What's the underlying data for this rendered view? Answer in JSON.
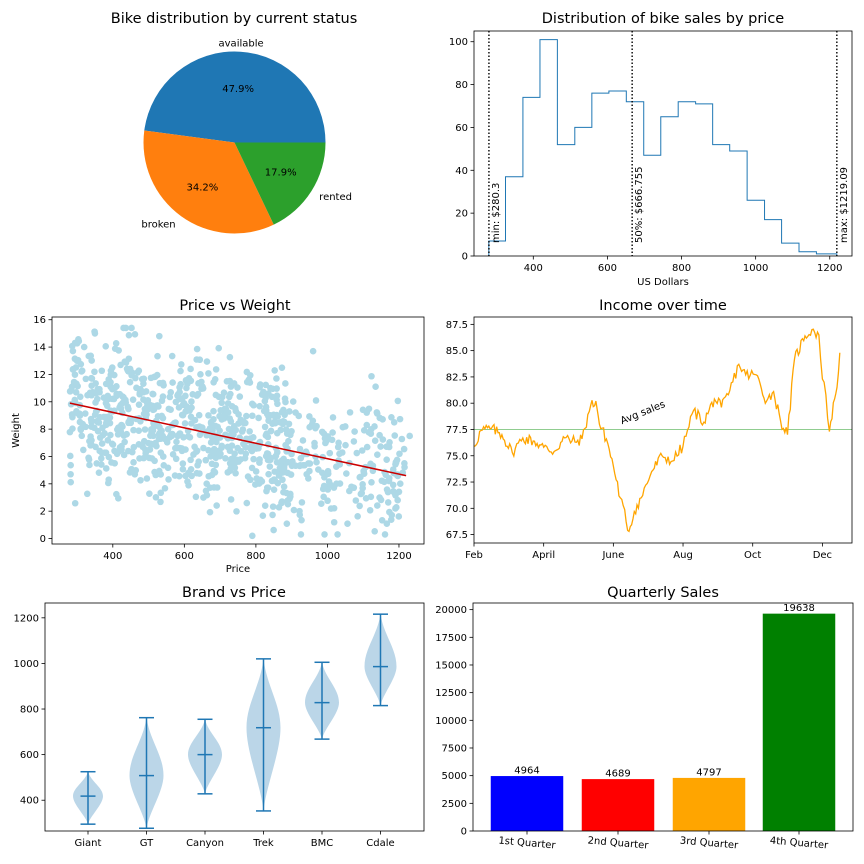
{
  "chart_data": [
    {
      "type": "pie",
      "title": "Bike distribution by current status",
      "labels": [
        "available",
        "broken",
        "rented"
      ],
      "values": [
        47.9,
        34.2,
        17.9
      ],
      "pct_labels": [
        "47.9%",
        "34.2%",
        "17.9%"
      ],
      "colors": [
        "#1f77b4",
        "#ff7f0e",
        "#2ca02c"
      ]
    },
    {
      "type": "histogram-step",
      "title": "Distribution of bike sales by price",
      "xlabel": "US Dollars",
      "xlim": [
        240,
        1260
      ],
      "ylim": [
        0,
        105
      ],
      "xticks": [
        400,
        600,
        800,
        1000,
        1200
      ],
      "yticks": [
        0,
        20,
        40,
        60,
        80,
        100
      ],
      "bin_edges": [
        280,
        325,
        372,
        418,
        465,
        512,
        558,
        604,
        651,
        698,
        744,
        791,
        838,
        884,
        930,
        977,
        1024,
        1070,
        1117,
        1164,
        1219
      ],
      "counts": [
        7,
        37,
        74,
        101,
        52,
        60,
        76,
        77,
        72,
        47,
        65,
        72,
        71,
        52,
        49,
        26,
        17,
        6,
        2,
        1
      ],
      "color": "#1f77b4",
      "vlines": [
        {
          "x": 280.3,
          "label": "min: $280.3"
        },
        {
          "x": 666.755,
          "label": "50%: $666.755"
        },
        {
          "x": 1219.09,
          "label": "max: $1219.09"
        }
      ]
    },
    {
      "type": "scatter",
      "title": "Price vs Weight",
      "xlabel": "Price",
      "ylabel": "Weight",
      "xlim": [
        230,
        1270
      ],
      "ylim": [
        -0.4,
        16.2
      ],
      "xticks": [
        400,
        600,
        800,
        1000,
        1200
      ],
      "yticks": [
        0,
        2,
        4,
        6,
        8,
        10,
        12,
        14,
        16
      ],
      "point_color": "#add8e6",
      "n_points": 900,
      "points_sample": [
        [
          282,
          4.7
        ],
        [
          300,
          13
        ],
        [
          320,
          14
        ],
        [
          350,
          15
        ],
        [
          430,
          15.4
        ],
        [
          530,
          14.8
        ],
        [
          960,
          13.7
        ],
        [
          1050,
          8.2
        ],
        [
          1110,
          8.3
        ],
        [
          1190,
          2.2
        ],
        [
          1230,
          7.5
        ],
        [
          790,
          0.2
        ]
      ],
      "trend": {
        "x": [
          280,
          1220
        ],
        "y": [
          9.9,
          4.6
        ],
        "color": "#cc0000"
      }
    },
    {
      "type": "line",
      "title": "Income over time",
      "xlim": [
        0,
        10.85
      ],
      "ylim": [
        66.7,
        88.2
      ],
      "xtick_labels": [
        "Feb",
        "April",
        "June",
        "Aug",
        "Oct",
        "Dec"
      ],
      "xtick_positions": [
        0,
        2,
        4,
        6,
        8,
        10
      ],
      "yticks": [
        67.5,
        70.0,
        72.5,
        75.0,
        77.5,
        80.0,
        82.5,
        85.0,
        87.5
      ],
      "ytick_labels": [
        "67.5",
        "70.0",
        "72.5",
        "75.0",
        "77.5",
        "80.0",
        "82.5",
        "85.0",
        "87.5"
      ],
      "color": "#ffa500",
      "keypoints": [
        [
          0,
          75.9
        ],
        [
          0.2,
          77.4
        ],
        [
          0.5,
          77.6
        ],
        [
          0.8,
          77.0
        ],
        [
          1.1,
          75.3
        ],
        [
          1.4,
          76.7
        ],
        [
          1.7,
          76.4
        ],
        [
          2.0,
          75.8
        ],
        [
          2.3,
          75.4
        ],
        [
          2.6,
          76.7
        ],
        [
          2.9,
          76.3
        ],
        [
          3.1,
          76.6
        ],
        [
          3.35,
          79.8
        ],
        [
          3.5,
          80.2
        ],
        [
          3.6,
          78.0
        ],
        [
          3.8,
          76.6
        ],
        [
          4.0,
          74.0
        ],
        [
          4.2,
          71.0
        ],
        [
          4.45,
          67.8
        ],
        [
          4.6,
          69.7
        ],
        [
          4.8,
          71.0
        ],
        [
          5.1,
          73.5
        ],
        [
          5.4,
          75.0
        ],
        [
          5.7,
          74.5
        ],
        [
          6.0,
          75.9
        ],
        [
          6.3,
          79.3
        ],
        [
          6.6,
          78.2
        ],
        [
          6.9,
          80.4
        ],
        [
          7.1,
          79.6
        ],
        [
          7.3,
          80.8
        ],
        [
          7.6,
          83.7
        ],
        [
          7.8,
          82.7
        ],
        [
          8.1,
          82.7
        ],
        [
          8.4,
          80.2
        ],
        [
          8.6,
          81.1
        ],
        [
          8.8,
          78.3
        ],
        [
          9.0,
          77.0
        ],
        [
          9.2,
          84.2
        ],
        [
          9.5,
          86.4
        ],
        [
          9.7,
          87.0
        ],
        [
          9.9,
          86.5
        ],
        [
          10.0,
          82.3
        ],
        [
          10.1,
          80.8
        ],
        [
          10.2,
          77.3
        ],
        [
          10.35,
          80.4
        ],
        [
          10.42,
          81.5
        ],
        [
          10.5,
          84.8
        ]
      ],
      "avg_line": {
        "y": 77.5,
        "label": "Avg sales",
        "color": "#2ca02c"
      }
    },
    {
      "type": "violin",
      "title": "Brand vs Price",
      "categories": [
        "Giant",
        "GT",
        "Canyon",
        "Trek",
        "BMC",
        "Cdale"
      ],
      "ylim": [
        265,
        1265
      ],
      "yticks": [
        400,
        600,
        800,
        1000,
        1200
      ],
      "color": "#1f77b4",
      "series": [
        {
          "name": "Giant",
          "min": 295,
          "median": 418,
          "max": 525
        },
        {
          "name": "GT",
          "min": 277,
          "median": 508,
          "max": 762
        },
        {
          "name": "Canyon",
          "min": 428,
          "median": 600,
          "max": 755
        },
        {
          "name": "Trek",
          "min": 353,
          "median": 718,
          "max": 1020
        },
        {
          "name": "BMC",
          "min": 668,
          "median": 828,
          "max": 1005
        },
        {
          "name": "Cdale",
          "min": 815,
          "median": 986,
          "max": 1216
        }
      ]
    },
    {
      "type": "bar",
      "title": "Quarterly Sales",
      "categories": [
        "1st Quarter",
        "2nd Quarter",
        "3rd Quarter",
        "4th Quarter"
      ],
      "values": [
        4964,
        4689,
        4797,
        19638
      ],
      "value_labels": [
        "4964",
        "4689",
        "4797",
        "19638"
      ],
      "colors": [
        "#0000ff",
        "#ff0000",
        "#ffa500",
        "#008000"
      ],
      "ylim": [
        0,
        20600
      ],
      "yticks": [
        0,
        2500,
        5000,
        7500,
        10000,
        12500,
        15000,
        17500,
        20000
      ],
      "ytick_labels": [
        "0",
        "2500",
        "5000",
        "7500",
        "10000",
        "12500",
        "15000",
        "17500",
        "20000"
      ]
    }
  ]
}
